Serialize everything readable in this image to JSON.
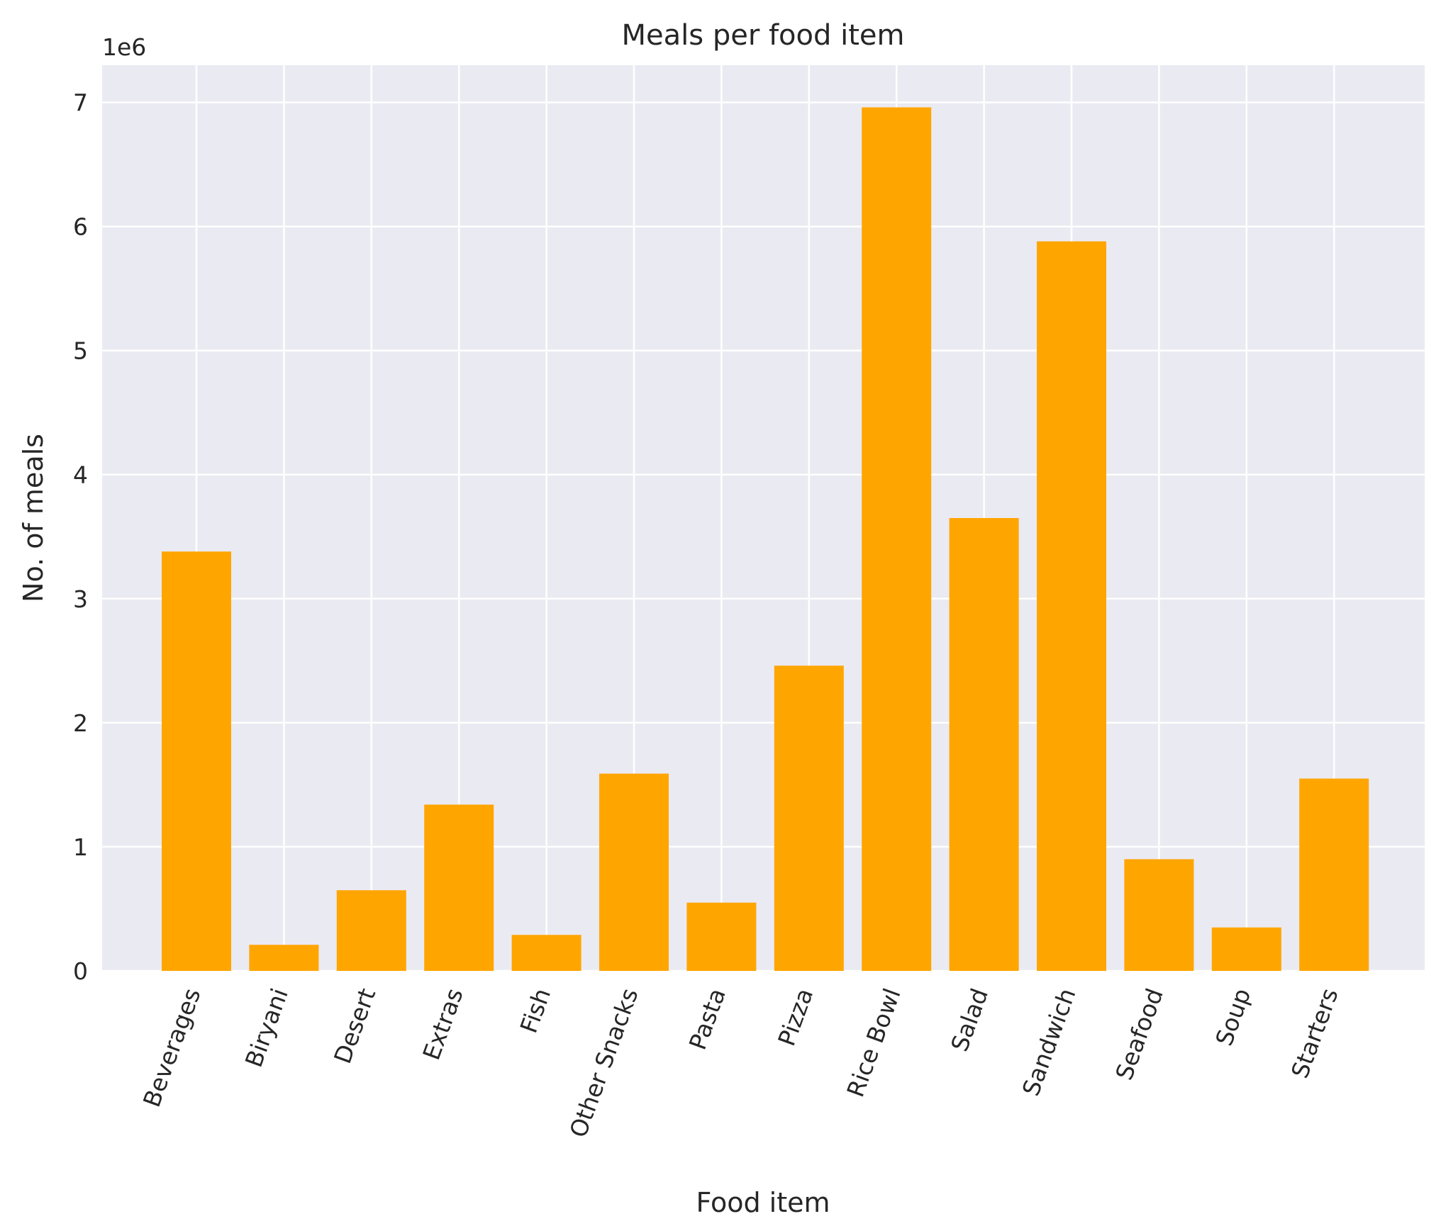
{
  "chart_data": {
    "type": "bar",
    "title": "Meals per food item",
    "xlabel": "Food item",
    "ylabel": "No. of meals",
    "y_offset_label": "1e6",
    "y_scale": 1000000,
    "ylim": [
      0,
      7300000
    ],
    "yticks": [
      0,
      1,
      2,
      3,
      4,
      5,
      6,
      7
    ],
    "grid": true,
    "x_tick_rotation_deg": 70,
    "categories": [
      "Beverages",
      "Biryani",
      "Desert",
      "Extras",
      "Fish",
      "Other Snacks",
      "Pasta",
      "Pizza",
      "Rice Bowl",
      "Salad",
      "Sandwich",
      "Seafood",
      "Soup",
      "Starters"
    ],
    "values": [
      3380000,
      210000,
      650000,
      1340000,
      290000,
      1590000,
      550000,
      2460000,
      6960000,
      3650000,
      5880000,
      900000,
      350000,
      1550000
    ],
    "colors": {
      "bar": "#FFA500",
      "plot_background": "#EAEAF2",
      "grid": "#FFFFFF",
      "text": "#262626"
    }
  }
}
